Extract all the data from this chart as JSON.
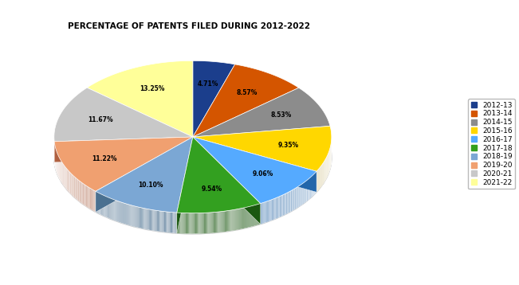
{
  "title": "PERCENTAGE OF PATENTS FILED DURING 2012-2022",
  "labels": [
    "2012-13",
    "2013-14",
    "2014-15",
    "2015-16",
    "2016-17",
    "2017-18",
    "2018-19",
    "2019-20",
    "2020-21",
    "2021-22"
  ],
  "percentages": [
    4.71,
    8.57,
    8.53,
    9.35,
    9.06,
    9.54,
    10.1,
    11.22,
    11.67,
    13.25
  ],
  "colors": [
    "#1B3E8C",
    "#D45500",
    "#8C8C8C",
    "#FFD700",
    "#55AAFF",
    "#33A020",
    "#7BA7D4",
    "#F0A070",
    "#C8C8C8",
    "#FFFF99"
  ],
  "dark_colors": [
    "#101E50",
    "#8A3300",
    "#505050",
    "#A08000",
    "#2266AA",
    "#1A5810",
    "#4A7090",
    "#B06040",
    "#888888",
    "#C0C060"
  ],
  "background_color": "#FFFFFF",
  "title_fontsize": 7.5,
  "legend_fontsize": 6.5,
  "startangle": 90,
  "depth": 0.15
}
